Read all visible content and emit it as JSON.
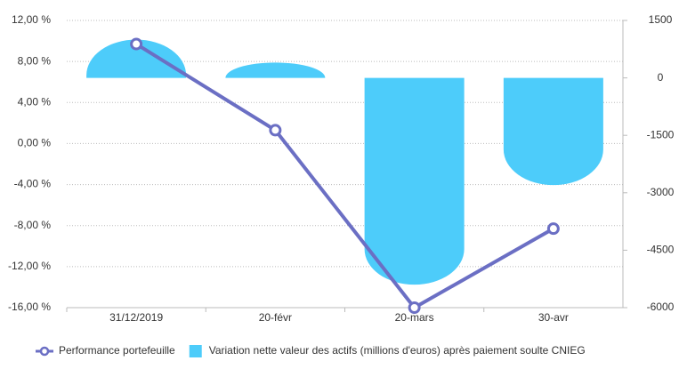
{
  "chart_data": {
    "type": "bar-line",
    "categories": [
      "31/12/2019",
      "20-févr",
      "20-mars",
      "30-avr"
    ],
    "series": [
      {
        "name": "Performance portefeuille",
        "type": "line",
        "color": "#6b6fc4",
        "values": [
          9.7,
          1.3,
          -16.0,
          -8.3
        ]
      },
      {
        "name": "Variation nette valeur des actifs (millions d'euros) après paiement soulte CNIEG",
        "type": "bar",
        "axis": "y2",
        "color": "#4dccfa",
        "values": [
          1000,
          400,
          -5400,
          -2800
        ]
      }
    ],
    "ylim": [
      -16,
      12
    ],
    "yticks": [
      {
        "value": -16,
        "label": "-16,00 %"
      },
      {
        "value": -12,
        "label": "-12,00 %"
      },
      {
        "value": -8,
        "label": "-8,00 %"
      },
      {
        "value": -4,
        "label": "-4,00 %"
      },
      {
        "value": 0,
        "label": "0,00 %"
      },
      {
        "value": 4,
        "label": "4,00 %"
      },
      {
        "value": 8,
        "label": "8,00 %"
      },
      {
        "value": 12,
        "label": "12,00 %"
      }
    ],
    "y2lim": [
      -6000,
      1500
    ],
    "y2ticks": [
      -6000,
      -4500,
      -3000,
      -1500,
      0,
      1500
    ],
    "grid": true,
    "legend": "bottom"
  }
}
